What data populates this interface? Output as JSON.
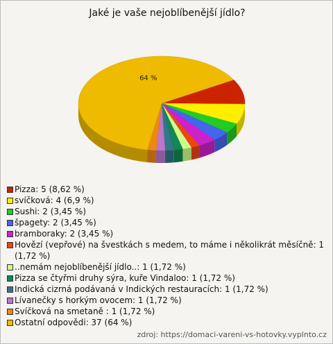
{
  "chart_data": {
    "type": "pie",
    "title": "Jaké je vaše nejoblíbenější jídlo?",
    "categories": [
      "Pizza: 5 (8,62 %)",
      "svíčková: 4 (6,9 %)",
      "Sushi: 2 (3,45 %)",
      "špagety: 2 (3,45 %)",
      "bramboraky: 2 (3,45 %)",
      "Hovězí (vepřové) na švestkách s medem, to máme i několikrát měsíčně: 1 (1,72 %)",
      "..nemám nejoblíbenější jídlo..: 1 (1,72 %)",
      "Pizza se čtyřmi druhy sýra, kuře Vindaloo: 1 (1,72 %)",
      "Indická cizrná podávaná v Indických restauracích: 1 (1,72 %)",
      "Lívanečky s horkým ovocem: 1 (1,72 %)",
      "Svíčková na smetaně : 1 (1,72 %)",
      "Ostatní odpovědi: 37 (64 %)"
    ],
    "values": [
      8.62,
      6.9,
      3.45,
      3.45,
      3.45,
      1.72,
      1.72,
      1.72,
      1.72,
      1.72,
      1.72,
      64
    ],
    "value_labels": [
      null,
      null,
      null,
      null,
      null,
      null,
      null,
      null,
      null,
      null,
      null,
      "64 %"
    ],
    "colors": [
      "#cc2200",
      "#ffee00",
      "#22cc22",
      "#4466ee",
      "#cc22cc",
      "#ee4411",
      "#ccff88",
      "#118855",
      "#337788",
      "#bb77cc",
      "#ee8811",
      "#eebb00"
    ],
    "source": "zdroj: https://domaci-vareni-vs-hotovky.vyplnto.cz"
  }
}
